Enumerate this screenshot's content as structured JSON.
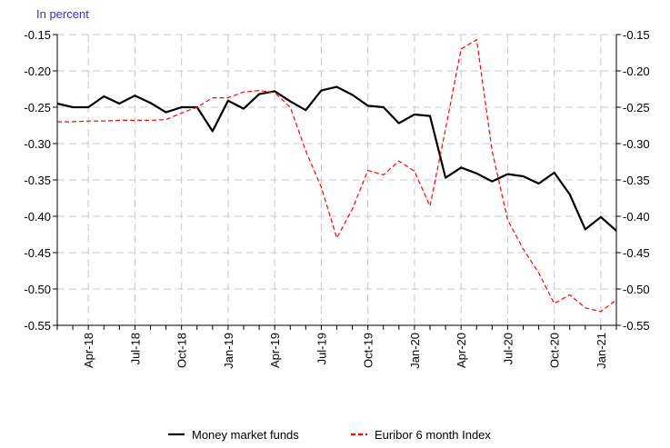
{
  "chart_data": {
    "type": "line",
    "y_label": "In percent",
    "categories": [
      null,
      null,
      "Apr-18",
      null,
      null,
      "Jul-18",
      null,
      null,
      "Oct-18",
      null,
      null,
      "Jan-19",
      null,
      null,
      "Apr-19",
      null,
      null,
      "Jul-19",
      null,
      null,
      "Oct-19",
      null,
      null,
      "Jan-20",
      null,
      null,
      "Apr-20",
      null,
      null,
      "Jul-20",
      null,
      null,
      "Oct-20",
      null,
      null,
      "Jan-21",
      null
    ],
    "series": [
      {
        "name": "Money market funds",
        "color": "#000000",
        "dashed": false,
        "values": [
          -0.245,
          -0.25,
          -0.25,
          -0.235,
          -0.245,
          -0.234,
          -0.244,
          -0.257,
          -0.25,
          -0.25,
          -0.283,
          -0.241,
          -0.252,
          -0.232,
          -0.228,
          -0.242,
          -0.254,
          -0.227,
          -0.222,
          -0.233,
          -0.248,
          -0.25,
          -0.272,
          -0.26,
          -0.262,
          -0.347,
          -0.333,
          -0.341,
          -0.352,
          -0.342,
          -0.345,
          -0.355,
          -0.34,
          -0.37,
          -0.418,
          -0.401,
          -0.42
        ]
      },
      {
        "name": "Euribor 6 month Index",
        "color": "#ff0000",
        "dashed": true,
        "values": [
          -0.27,
          -0.27,
          -0.269,
          -0.269,
          -0.268,
          -0.268,
          -0.268,
          -0.267,
          -0.258,
          -0.25,
          -0.237,
          -0.237,
          -0.229,
          -0.227,
          -0.23,
          -0.25,
          -0.31,
          -0.36,
          -0.43,
          -0.39,
          -0.337,
          -0.343,
          -0.324,
          -0.338,
          -0.386,
          -0.28,
          -0.17,
          -0.157,
          -0.31,
          -0.405,
          -0.445,
          -0.478,
          -0.52,
          -0.508,
          -0.526,
          -0.531,
          -0.515
        ]
      }
    ],
    "ylim": [
      -0.55,
      -0.15
    ],
    "yticks": [
      -0.15,
      {
        "value": -0.2,
        "label": "-0.20"
      },
      -0.25,
      {
        "value": -0.3,
        "label": "-0.30"
      },
      -0.35,
      {
        "value": -0.4,
        "label": "-0.40"
      },
      -0.45,
      {
        "value": -0.5,
        "label": "-0.50"
      },
      -0.55
    ],
    "grid": true,
    "legend": "bottom"
  }
}
